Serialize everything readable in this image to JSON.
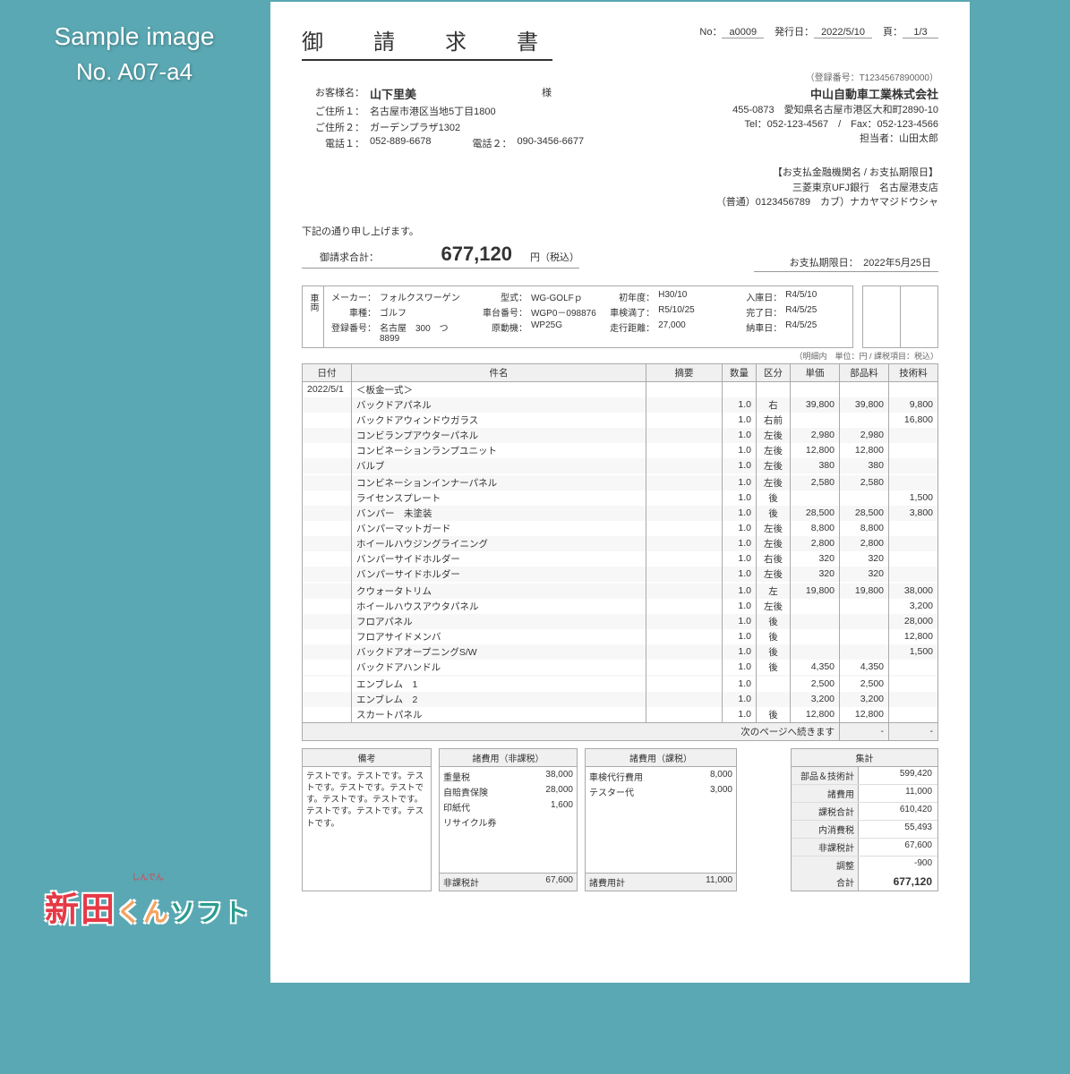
{
  "sample": {
    "title": "Sample image",
    "no": "No. A07-a4"
  },
  "logo": {
    "kanji": "新田",
    "kun": "くん",
    "soft": "ソフト",
    "ruby": "しんでん"
  },
  "header": {
    "title": "御　請　求　書",
    "no_lbl": "No：",
    "no": "a0009",
    "date_lbl": "発行日：",
    "date": "2022/5/10",
    "page_lbl": "頁：",
    "page": "1/3",
    "reg_no": "（登録番号：T1234567890000）"
  },
  "customer": {
    "name_lbl": "お客様名：",
    "name": "山下里美",
    "sama": "様",
    "addr1_lbl": "ご住所１：",
    "addr1": "名古屋市港区当地5丁目1800",
    "addr2_lbl": "ご住所２：",
    "addr2": "ガーデンプラザ1302",
    "tel1_lbl": "電話１：",
    "tel1": "052-889-6678",
    "tel2_lbl": "電話２：",
    "tel2": "090-3456-6677"
  },
  "company": {
    "name": "中山自動車工業株式会社",
    "addr": "455-0873　愛知県名古屋市港区大和町2890-10",
    "tel": "Tel：052-123-4567　/　Fax：052-123-4566",
    "pic": "担当者：山田太郎"
  },
  "payment": {
    "hdr": "【お支払金融機関名 / お支払期限日】",
    "bank": "三菱東京UFJ銀行　名古屋港支店",
    "acct": "（普通）0123456789　カブ）ナカヤマジドウシャ",
    "due_lbl": "お支払期限日：",
    "due": "2022年5月25日"
  },
  "preline": "下記の通り申し上げます。",
  "total": {
    "lbl": "御請求合計：",
    "amt": "677,120",
    "unit": "円（税込）"
  },
  "vehicle": {
    "label": "車両",
    "maker_lbl": "メーカー：",
    "maker": "フォルクスワーゲン",
    "type_lbl": "車種：",
    "type": "ゴルフ",
    "reg_lbl": "登録番号：",
    "reg": "名古屋　300　つ　8899",
    "model_lbl": "型式：",
    "model": "WG-GOLFｐ",
    "chassis_lbl": "車台番号：",
    "chassis": "WGP0－098876",
    "engine_lbl": "原動機：",
    "engine": "WP25G",
    "firstyr_lbl": "初年度：",
    "firstyr": "H30/10",
    "inspect_lbl": "車検満了：",
    "inspect": "R5/10/25",
    "mileage_lbl": "走行距離：",
    "mileage": "27,000",
    "in_lbl": "入庫日：",
    "in": "R4/5/10",
    "done_lbl": "完了日：",
    "done": "R4/5/25",
    "out_lbl": "納車日：",
    "out": "R4/5/25"
  },
  "note_small": "（明細内　単位：円 / 課税項目：税込）",
  "cols": {
    "date": "日付",
    "item": "件名",
    "desc": "摘要",
    "qty": "数量",
    "cls": "区分",
    "unit": "単価",
    "parts": "部品料",
    "labor": "技術料"
  },
  "rows": [
    {
      "date": "2022/5/1",
      "item": "＜板金一式＞",
      "desc": "",
      "qty": "",
      "cls": "",
      "unit": "",
      "parts": "",
      "labor": ""
    },
    {
      "date": "",
      "item": "バックドアパネル",
      "desc": "",
      "qty": "1.0",
      "cls": "右",
      "unit": "39,800",
      "parts": "39,800",
      "labor": "9,800"
    },
    {
      "date": "",
      "item": "バックドアウィンドウガラス",
      "desc": "",
      "qty": "1.0",
      "cls": "右前",
      "unit": "",
      "parts": "",
      "labor": "16,800"
    },
    {
      "date": "",
      "item": "コンビランプアウターパネル",
      "desc": "",
      "qty": "1.0",
      "cls": "左後",
      "unit": "2,980",
      "parts": "2,980",
      "labor": ""
    },
    {
      "date": "",
      "item": "コンビネーションランプユニット",
      "desc": "",
      "qty": "1.0",
      "cls": "左後",
      "unit": "12,800",
      "parts": "12,800",
      "labor": ""
    },
    {
      "date": "",
      "item": "バルブ",
      "desc": "",
      "qty": "1.0",
      "cls": "左後",
      "unit": "380",
      "parts": "380",
      "labor": ""
    },
    {
      "date": "",
      "item": "",
      "desc": "",
      "qty": "",
      "cls": "",
      "unit": "",
      "parts": "",
      "labor": ""
    },
    {
      "date": "",
      "item": "コンビネーションインナーパネル",
      "desc": "",
      "qty": "1.0",
      "cls": "左後",
      "unit": "2,580",
      "parts": "2,580",
      "labor": ""
    },
    {
      "date": "",
      "item": "ライセンスプレート",
      "desc": "",
      "qty": "1.0",
      "cls": "後",
      "unit": "",
      "parts": "",
      "labor": "1,500"
    },
    {
      "date": "",
      "item": "バンパー　未塗装",
      "desc": "",
      "qty": "1.0",
      "cls": "後",
      "unit": "28,500",
      "parts": "28,500",
      "labor": "3,800"
    },
    {
      "date": "",
      "item": "バンパーマットガード",
      "desc": "",
      "qty": "1.0",
      "cls": "左後",
      "unit": "8,800",
      "parts": "8,800",
      "labor": ""
    },
    {
      "date": "",
      "item": "ホイールハウジングライニング",
      "desc": "",
      "qty": "1.0",
      "cls": "左後",
      "unit": "2,800",
      "parts": "2,800",
      "labor": ""
    },
    {
      "date": "",
      "item": "バンパーサイドホルダー",
      "desc": "",
      "qty": "1.0",
      "cls": "右後",
      "unit": "320",
      "parts": "320",
      "labor": ""
    },
    {
      "date": "",
      "item": "バンパーサイドホルダー",
      "desc": "",
      "qty": "1.0",
      "cls": "左後",
      "unit": "320",
      "parts": "320",
      "labor": ""
    },
    {
      "date": "",
      "item": "",
      "desc": "",
      "qty": "",
      "cls": "",
      "unit": "",
      "parts": "",
      "labor": ""
    },
    {
      "date": "",
      "item": "クウォータトリム",
      "desc": "",
      "qty": "1.0",
      "cls": "左",
      "unit": "19,800",
      "parts": "19,800",
      "labor": "38,000"
    },
    {
      "date": "",
      "item": "ホイールハウスアウタパネル",
      "desc": "",
      "qty": "1.0",
      "cls": "左後",
      "unit": "",
      "parts": "",
      "labor": "3,200"
    },
    {
      "date": "",
      "item": "フロアパネル",
      "desc": "",
      "qty": "1.0",
      "cls": "後",
      "unit": "",
      "parts": "",
      "labor": "28,000"
    },
    {
      "date": "",
      "item": "フロアサイドメンバ",
      "desc": "",
      "qty": "1.0",
      "cls": "後",
      "unit": "",
      "parts": "",
      "labor": "12,800"
    },
    {
      "date": "",
      "item": "バックドアオープニングS/W",
      "desc": "",
      "qty": "1.0",
      "cls": "後",
      "unit": "",
      "parts": "",
      "labor": "1,500"
    },
    {
      "date": "",
      "item": "バックドアハンドル",
      "desc": "",
      "qty": "1.0",
      "cls": "後",
      "unit": "4,350",
      "parts": "4,350",
      "labor": ""
    },
    {
      "date": "",
      "item": "",
      "desc": "",
      "qty": "",
      "cls": "",
      "unit": "",
      "parts": "",
      "labor": ""
    },
    {
      "date": "",
      "item": "エンブレム　1",
      "desc": "",
      "qty": "1.0",
      "cls": "",
      "unit": "2,500",
      "parts": "2,500",
      "labor": ""
    },
    {
      "date": "",
      "item": "エンブレム　2",
      "desc": "",
      "qty": "1.0",
      "cls": "",
      "unit": "3,200",
      "parts": "3,200",
      "labor": ""
    },
    {
      "date": "",
      "item": "スカートパネル",
      "desc": "",
      "qty": "1.0",
      "cls": "後",
      "unit": "12,800",
      "parts": "12,800",
      "labor": ""
    }
  ],
  "foot": {
    "cont": "次のページへ続きます",
    "dash": "-"
  },
  "remarks": {
    "hdr": "備考",
    "body": "テストです。テストです。テストです。テストです。テストです。テストです。テストです。テストです。テストです。テストです。"
  },
  "fees1": {
    "hdr": "諸費用（非課税）",
    "items": [
      [
        "重量税",
        "38,000"
      ],
      [
        "自賠責保険",
        "28,000"
      ],
      [
        "印紙代",
        "1,600"
      ],
      [
        "リサイクル券",
        ""
      ]
    ],
    "tot_lbl": "非課税計",
    "tot": "67,600"
  },
  "fees2": {
    "hdr": "諸費用（課税）",
    "items": [
      [
        "車検代行費用",
        "8,000"
      ],
      [
        "テスター代",
        "3,000"
      ]
    ],
    "tot_lbl": "諸費用計",
    "tot": "11,000"
  },
  "summary": {
    "hdr": "集計",
    "rows": [
      [
        "部品＆技術計",
        "599,420"
      ],
      [
        "諸費用",
        "11,000"
      ],
      [
        "課税合計",
        "610,420"
      ],
      [
        "内消費税",
        "55,493"
      ],
      [
        "非課税計",
        "67,600"
      ],
      [
        "調整",
        "-900"
      ]
    ],
    "tot_lbl": "合計",
    "tot": "677,120"
  }
}
